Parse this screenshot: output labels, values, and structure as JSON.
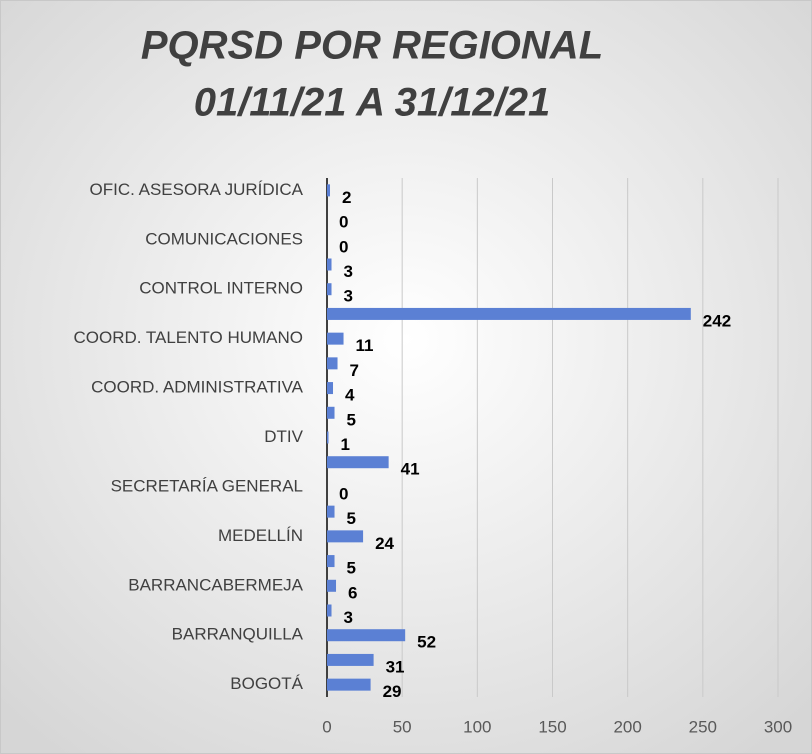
{
  "chart_data": {
    "type": "bar",
    "orientation": "horizontal",
    "title": "PQRSD POR REGIONAL",
    "subtitle": "01/11/21 A 31/12/21",
    "categories": [
      "OFIC. ASESORA JURÍDICA ",
      null,
      "COMUNICACIONES",
      null,
      "CONTROL INTERNO",
      null,
      "COORD. TALENTO HUMANO",
      null,
      "COORD. ADMINISTRATIVA",
      null,
      "DTIV",
      null,
      "SECRETARÍA GENERAL",
      null,
      "MEDELLÍN",
      null,
      "BARRANCABERMEJA",
      null,
      "BARRANQUILLA",
      null,
      "BOGOTÁ"
    ],
    "values": [
      2,
      0,
      0,
      3,
      3,
      242,
      11,
      7,
      4,
      5,
      1,
      41,
      0,
      5,
      24,
      5,
      6,
      3,
      52,
      31,
      29
    ],
    "color": "#5b80d4",
    "xlim": [
      0,
      300
    ],
    "xticks": [
      0,
      50,
      100,
      150,
      200,
      250,
      300
    ],
    "grid": true
  }
}
